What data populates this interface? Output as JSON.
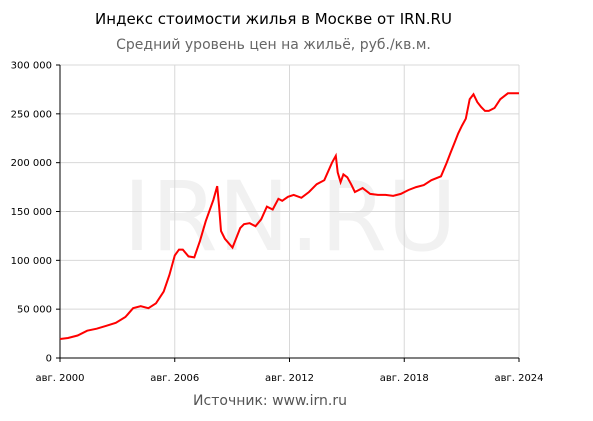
{
  "chart_data": {
    "type": "line",
    "title": "Индекс стоимости жилья в Москве от IRN.RU",
    "subtitle": "Средний уровень цен на жильё, руб./кв.м.",
    "source": "Источник: www.irn.ru",
    "watermark": "IRN.RU",
    "xlabel": "",
    "ylabel": "",
    "xlim": [
      2000.58,
      2024.58
    ],
    "ylim": [
      0,
      300000
    ],
    "x_ticks": [
      {
        "x": 2000.58,
        "label": "авг. 2000"
      },
      {
        "x": 2006.58,
        "label": "авг. 2006"
      },
      {
        "x": 2012.58,
        "label": "авг. 2012"
      },
      {
        "x": 2018.58,
        "label": "авг. 2018"
      },
      {
        "x": 2024.58,
        "label": "авг. 2024"
      }
    ],
    "y_ticks": [
      {
        "y": 0,
        "label": "0"
      },
      {
        "y": 50000,
        "label": "50 000"
      },
      {
        "y": 100000,
        "label": "100 000"
      },
      {
        "y": 150000,
        "label": "150 000"
      },
      {
        "y": 200000,
        "label": "200 000"
      },
      {
        "y": 250000,
        "label": "250 000"
      },
      {
        "y": 300000,
        "label": "300 000"
      }
    ],
    "grid": true,
    "line_color": "#ff0000",
    "series": [
      {
        "x": [
          2000.58,
          2001.0,
          2001.5,
          2002.0,
          2002.5,
          2003.0,
          2003.5,
          2004.0,
          2004.4,
          2004.8,
          2005.2,
          2005.6,
          2006.0,
          2006.3,
          2006.58,
          2006.8,
          2007.0,
          2007.3,
          2007.6,
          2007.9,
          2008.2,
          2008.6,
          2008.8,
          2008.9,
          2009.0,
          2009.2,
          2009.6,
          2010.0,
          2010.2,
          2010.5,
          2010.8,
          2011.1,
          2011.4,
          2011.7,
          2012.0,
          2012.2,
          2012.5,
          2012.8,
          2013.2,
          2013.6,
          2014.0,
          2014.4,
          2014.8,
          2015.0,
          2015.1,
          2015.25,
          2015.4,
          2015.6,
          2015.8,
          2016.0,
          2016.4,
          2016.8,
          2017.2,
          2017.6,
          2018.0,
          2018.4,
          2018.8,
          2019.2,
          2019.6,
          2020.0,
          2020.5,
          2020.8,
          2021.0,
          2021.2,
          2021.4,
          2021.6,
          2021.8,
          2022.0,
          2022.2,
          2022.4,
          2022.6,
          2022.8,
          2023.0,
          2023.3,
          2023.6,
          2024.0,
          2024.58
        ],
        "y": [
          19500,
          20500,
          23000,
          28000,
          30000,
          33000,
          36000,
          42000,
          51000,
          53000,
          51000,
          56000,
          68000,
          85000,
          105000,
          111000,
          111000,
          104000,
          103000,
          120000,
          140000,
          162000,
          176000,
          155000,
          130000,
          122000,
          113000,
          133000,
          137000,
          138000,
          135000,
          142000,
          155000,
          152000,
          163000,
          161000,
          165000,
          167000,
          164000,
          170000,
          178000,
          182000,
          200000,
          207000,
          190000,
          180000,
          188000,
          185000,
          178000,
          170000,
          174000,
          168000,
          167000,
          167000,
          166000,
          168000,
          172000,
          175000,
          177000,
          182000,
          186000,
          200000,
          210000,
          220000,
          230000,
          238000,
          245000,
          265000,
          270000,
          262000,
          257000,
          253000,
          253000,
          256000,
          265000,
          271000,
          271000
        ]
      }
    ]
  }
}
